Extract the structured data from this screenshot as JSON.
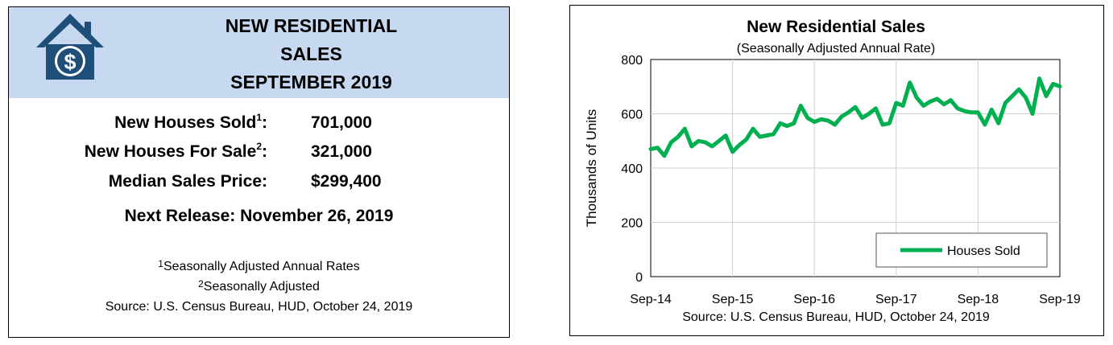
{
  "summary": {
    "title_lines": [
      "NEW RESIDENTIAL",
      "SALES",
      "SEPTEMBER 2019"
    ],
    "logo": "house-dollar-icon",
    "stats": [
      {
        "label": "New Houses Sold",
        "sup": "1",
        "value": "701,000"
      },
      {
        "label": "New Houses For Sale",
        "sup": "2",
        "value": "321,000"
      },
      {
        "label": "Median Sales Price",
        "sup": "",
        "value": "$299,400"
      }
    ],
    "next_release": "Next Release:  November 26, 2019",
    "footnotes": [
      {
        "sup": "1",
        "text": "Seasonally Adjusted Annual Rates"
      },
      {
        "sup": "2",
        "text": "Seasonally Adjusted"
      }
    ],
    "source": "Source:  U.S. Census Bureau, HUD, October 24, 2019"
  },
  "colors": {
    "header_bg": "#c6d9f1",
    "logo": "#1f4e79",
    "series": "#00b050"
  },
  "chart_data": {
    "type": "line",
    "title": "New Residential Sales",
    "subtitle": "(Seasonally Adjusted Annual Rate)",
    "xlabel": "",
    "ylabel": "Thousands of Units",
    "ylim": [
      0,
      800
    ],
    "yticks": [
      0,
      200,
      400,
      600,
      800
    ],
    "xticks": [
      "Sep-14",
      "Sep-15",
      "Sep-16",
      "Sep-17",
      "Sep-18",
      "Sep-19"
    ],
    "grid": true,
    "legend": "bottom-right",
    "source": "Source:  U.S. Census Bureau, HUD, October 24, 2019",
    "series": [
      {
        "name": "Houses Sold",
        "start": "Sep-14",
        "values": [
          470,
          475,
          445,
          495,
          515,
          545,
          480,
          500,
          495,
          480,
          500,
          520,
          460,
          485,
          505,
          545,
          515,
          520,
          525,
          565,
          555,
          565,
          630,
          585,
          570,
          580,
          575,
          560,
          590,
          605,
          625,
          585,
          600,
          620,
          560,
          565,
          640,
          630,
          715,
          660,
          630,
          645,
          655,
          635,
          650,
          620,
          610,
          605,
          605,
          560,
          615,
          565,
          640,
          665,
          690,
          660,
          600,
          730,
          665,
          710,
          701
        ]
      }
    ]
  }
}
